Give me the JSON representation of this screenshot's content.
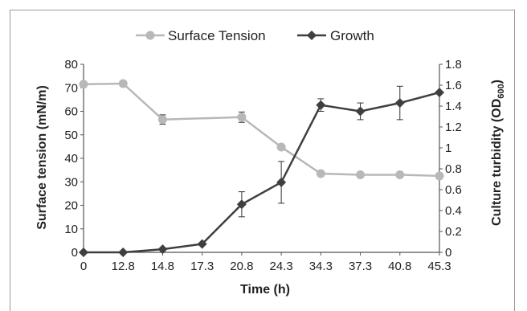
{
  "chart_data": {
    "type": "line",
    "categories": [
      "0",
      "12.8",
      "14.8",
      "17.3",
      "20.8",
      "24.3",
      "34.3",
      "37.3",
      "40.8",
      "45.3"
    ],
    "series": [
      {
        "name": "Surface Tension",
        "axis": "left",
        "color": "#b8b8b8",
        "marker": "circle",
        "values": [
          71.5,
          71.8,
          56.5,
          null,
          57.5,
          44.8,
          33.5,
          33.0,
          33.0,
          32.5
        ],
        "error": [
          0,
          0,
          2.0,
          null,
          2.2,
          0,
          0,
          0,
          0,
          0
        ]
      },
      {
        "name": "Growth",
        "axis": "right",
        "color": "#3f3f3f",
        "marker": "diamond",
        "values": [
          0.0,
          0.0,
          0.03,
          0.08,
          0.46,
          0.67,
          1.41,
          1.35,
          1.43,
          1.53
        ],
        "error": [
          0,
          0,
          0,
          0,
          0.12,
          0.2,
          0.06,
          0.08,
          0.16,
          0
        ]
      }
    ],
    "xlabel": "Time (h)",
    "ylabel_left": "Surface tension (mN/m)",
    "ylabel_right_main": "Culture turbidity (OD",
    "ylabel_right_sub": "600",
    "ylabel_right_close": ")",
    "ylim_left": [
      0,
      80
    ],
    "yticks_left": [
      "0",
      "10",
      "20",
      "30",
      "40",
      "50",
      "60",
      "70",
      "80"
    ],
    "ylim_right": [
      0,
      1.8
    ],
    "yticks_right": [
      "0",
      "0.2",
      "0.4",
      "0.6",
      "0.8",
      "1",
      "1.2",
      "1.4",
      "1.6",
      "1.8"
    ],
    "grid": false,
    "legend_position": "top"
  }
}
